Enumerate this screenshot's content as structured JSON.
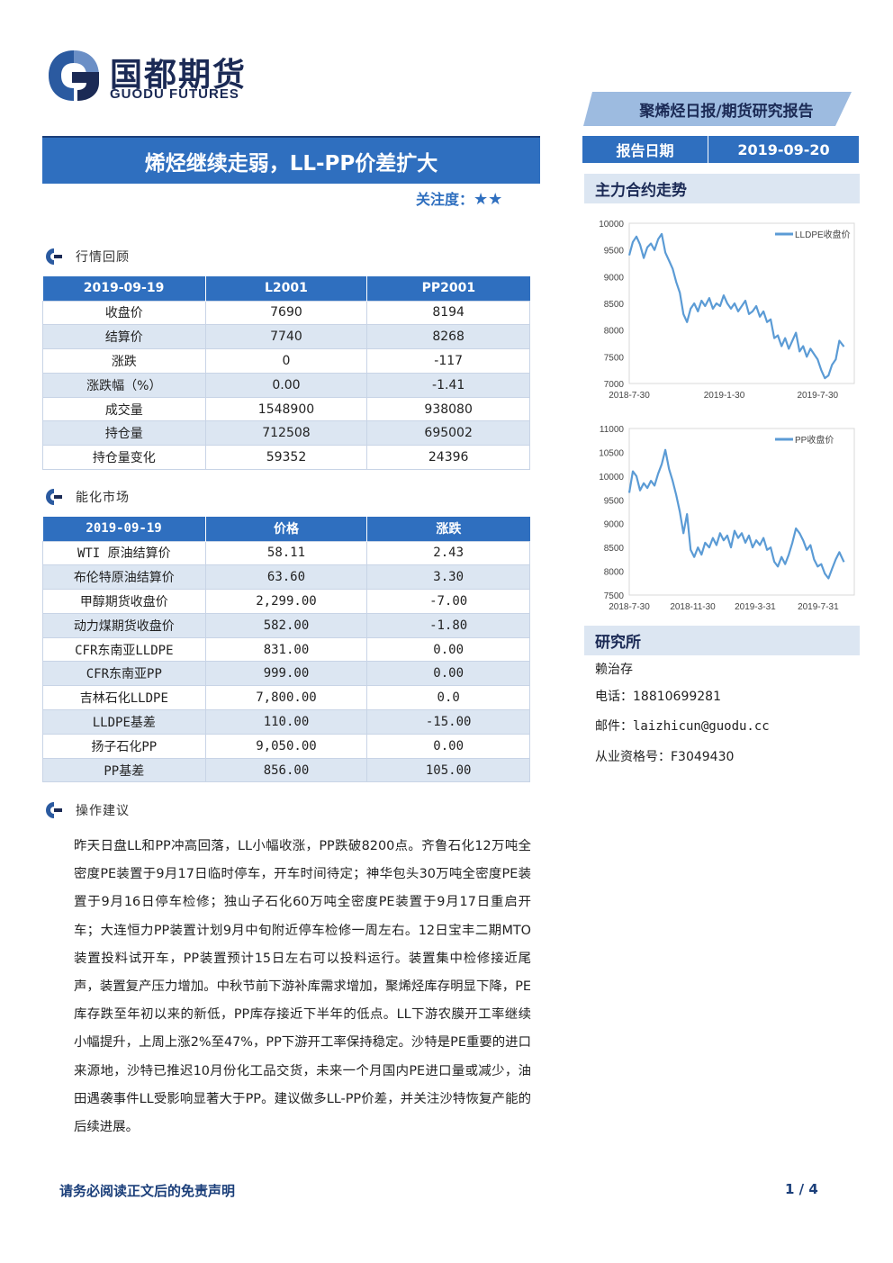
{
  "logo": {
    "cn": "国都期货",
    "en": "GUODU FUTURES"
  },
  "report_type": "聚烯烃日报/期货研究报告",
  "title": "烯烃继续走弱，LL-PP价差扩大",
  "attention": {
    "label": "关注度：",
    "stars": "★★"
  },
  "report_date": {
    "label": "报告日期",
    "value": "2019-09-20"
  },
  "sections": {
    "market_review": "行情回顾",
    "energy_market": "能化市场",
    "suggestion": "操作建议",
    "main_trend": "主力合约走势",
    "institute": "研究所"
  },
  "market_table": {
    "headers": [
      "2019-09-19",
      "L2001",
      "PP2001"
    ],
    "rows": [
      [
        "收盘价",
        "7690",
        "8194"
      ],
      [
        "结算价",
        "7740",
        "8268"
      ],
      [
        "涨跌",
        "0",
        "-117"
      ],
      [
        "涨跌幅（%）",
        "0.00",
        "-1.41"
      ],
      [
        "成交量",
        "1548900",
        "938080"
      ],
      [
        "持仓量",
        "712508",
        "695002"
      ],
      [
        "持仓量变化",
        "59352",
        "24396"
      ]
    ]
  },
  "energy_table": {
    "headers": [
      "2019-09-19",
      "价格",
      "涨跌"
    ],
    "rows": [
      [
        "WTI 原油结算价",
        "58.11",
        "2.43"
      ],
      [
        "布伦特原油结算价",
        "63.60",
        "3.30"
      ],
      [
        "甲醇期货收盘价",
        "2,299.00",
        "-7.00"
      ],
      [
        "动力煤期货收盘价",
        "582.00",
        "-1.80"
      ],
      [
        "CFR东南亚LLDPE",
        "831.00",
        "0.00"
      ],
      [
        "CFR东南亚PP",
        "999.00",
        "0.00"
      ],
      [
        "吉林石化LLDPE",
        "7,800.00",
        "0.0"
      ],
      [
        "LLDPE基差",
        "110.00",
        "-15.00"
      ],
      [
        "扬子石化PP",
        "9,050.00",
        "0.00"
      ],
      [
        "PP基差",
        "856.00",
        "105.00"
      ]
    ]
  },
  "suggestion_text": "昨天日盘LL和PP冲高回落，LL小幅收涨，PP跌破8200点。齐鲁石化12万吨全密度PE装置于9月17日临时停车，开车时间待定；神华包头30万吨全密度PE装置于9月16日停车检修；独山子石化60万吨全密度PE装置于9月17日重启开车；大连恒力PP装置计划9月中旬附近停车检修一周左右。12日宝丰二期MTO装置投料试开车，PP装置预计15日左右可以投料运行。装置集中检修接近尾声，装置复产压力增加。中秋节前下游补库需求增加，聚烯烃库存明显下降，PE库存跌至年初以来的新低，PP库存接近下半年的低点。LL下游农膜开工率继续小幅提升，上周上涨2%至47%，PP下游开工率保持稳定。沙特是PE重要的进口来源地，沙特已推迟10月份化工品交货，未来一个月国内PE进口量或减少，油田遇袭事件LL受影响显著大于PP。建议做多LL-PP价差，并关注沙特恢复产能的后续进展。",
  "analyst": {
    "name": "赖治存",
    "phone": "电话：18810699281",
    "email": "邮件：laizhicun@guodu.cc",
    "license": "从业资格号：F3049430"
  },
  "footer": {
    "disclaimer": "请务必阅读正文后的免责声明",
    "page": "1 / 4"
  },
  "chart_data": [
    {
      "type": "line",
      "series": [
        {
          "name": "LLDPE收盘价",
          "color": "#5b9bd5"
        }
      ],
      "x_ticks": [
        "2018-7-30",
        "2019-1-30",
        "2019-7-30"
      ],
      "y_ticks": [
        7000,
        7500,
        8000,
        8500,
        9000,
        9500,
        10000
      ],
      "ylim": [
        7000,
        10000
      ],
      "legend": "top-right",
      "points": [
        [
          "2018-07-30",
          9400
        ],
        [
          "2018-08-06",
          9650
        ],
        [
          "2018-08-13",
          9750
        ],
        [
          "2018-08-20",
          9600
        ],
        [
          "2018-08-27",
          9350
        ],
        [
          "2018-09-03",
          9550
        ],
        [
          "2018-09-10",
          9620
        ],
        [
          "2018-09-17",
          9500
        ],
        [
          "2018-09-24",
          9700
        ],
        [
          "2018-10-01",
          9800
        ],
        [
          "2018-10-08",
          9450
        ],
        [
          "2018-10-15",
          9300
        ],
        [
          "2018-10-22",
          9150
        ],
        [
          "2018-10-29",
          8900
        ],
        [
          "2018-11-05",
          8700
        ],
        [
          "2018-11-12",
          8300
        ],
        [
          "2018-11-19",
          8150
        ],
        [
          "2018-11-26",
          8400
        ],
        [
          "2018-12-03",
          8500
        ],
        [
          "2018-12-10",
          8350
        ],
        [
          "2018-12-17",
          8550
        ],
        [
          "2018-12-24",
          8450
        ],
        [
          "2019-01-01",
          8600
        ],
        [
          "2019-01-08",
          8400
        ],
        [
          "2019-01-15",
          8500
        ],
        [
          "2019-01-22",
          8450
        ],
        [
          "2019-01-29",
          8650
        ],
        [
          "2019-02-05",
          8500
        ],
        [
          "2019-02-12",
          8400
        ],
        [
          "2019-02-19",
          8500
        ],
        [
          "2019-02-26",
          8350
        ],
        [
          "2019-03-05",
          8450
        ],
        [
          "2019-03-12",
          8550
        ],
        [
          "2019-03-19",
          8300
        ],
        [
          "2019-03-26",
          8350
        ],
        [
          "2019-04-02",
          8450
        ],
        [
          "2019-04-09",
          8250
        ],
        [
          "2019-04-16",
          8350
        ],
        [
          "2019-04-23",
          8150
        ],
        [
          "2019-04-30",
          8200
        ],
        [
          "2019-05-07",
          7850
        ],
        [
          "2019-05-14",
          7900
        ],
        [
          "2019-05-21",
          7700
        ],
        [
          "2019-05-28",
          7850
        ],
        [
          "2019-06-04",
          7650
        ],
        [
          "2019-06-11",
          7800
        ],
        [
          "2019-06-18",
          7950
        ],
        [
          "2019-06-25",
          7600
        ],
        [
          "2019-07-02",
          7700
        ],
        [
          "2019-07-09",
          7500
        ],
        [
          "2019-07-16",
          7650
        ],
        [
          "2019-07-23",
          7550
        ],
        [
          "2019-07-30",
          7450
        ],
        [
          "2019-08-06",
          7250
        ],
        [
          "2019-08-13",
          7100
        ],
        [
          "2019-08-20",
          7150
        ],
        [
          "2019-08-27",
          7350
        ],
        [
          "2019-09-03",
          7450
        ],
        [
          "2019-09-10",
          7800
        ],
        [
          "2019-09-19",
          7690
        ]
      ]
    },
    {
      "type": "line",
      "series": [
        {
          "name": "PP收盘价",
          "color": "#5b9bd5"
        }
      ],
      "x_ticks": [
        "2018-7-30",
        "2018-11-30",
        "2019-3-31",
        "2019-7-31"
      ],
      "y_ticks": [
        7500,
        8000,
        8500,
        9000,
        9500,
        10000,
        10500,
        11000
      ],
      "ylim": [
        7500,
        11000
      ],
      "legend": "top-right",
      "points": [
        [
          "2018-07-30",
          9650
        ],
        [
          "2018-08-06",
          10100
        ],
        [
          "2018-08-13",
          10000
        ],
        [
          "2018-08-20",
          9700
        ],
        [
          "2018-08-27",
          9850
        ],
        [
          "2018-09-03",
          9750
        ],
        [
          "2018-09-10",
          9900
        ],
        [
          "2018-09-17",
          9800
        ],
        [
          "2018-09-24",
          10050
        ],
        [
          "2018-10-01",
          10250
        ],
        [
          "2018-10-08",
          10550
        ],
        [
          "2018-10-15",
          10150
        ],
        [
          "2018-10-22",
          9900
        ],
        [
          "2018-10-29",
          9600
        ],
        [
          "2018-11-05",
          9250
        ],
        [
          "2018-11-12",
          8800
        ],
        [
          "2018-11-19",
          9200
        ],
        [
          "2018-11-26",
          8450
        ],
        [
          "2018-12-03",
          8300
        ],
        [
          "2018-12-10",
          8500
        ],
        [
          "2018-12-17",
          8350
        ],
        [
          "2018-12-24",
          8600
        ],
        [
          "2019-01-01",
          8500
        ],
        [
          "2019-01-08",
          8700
        ],
        [
          "2019-01-15",
          8550
        ],
        [
          "2019-01-22",
          8800
        ],
        [
          "2019-01-29",
          8650
        ],
        [
          "2019-02-05",
          8750
        ],
        [
          "2019-02-12",
          8500
        ],
        [
          "2019-02-19",
          8850
        ],
        [
          "2019-02-26",
          8700
        ],
        [
          "2019-03-05",
          8800
        ],
        [
          "2019-03-12",
          8600
        ],
        [
          "2019-03-19",
          8750
        ],
        [
          "2019-03-26",
          8500
        ],
        [
          "2019-04-02",
          8650
        ],
        [
          "2019-04-09",
          8550
        ],
        [
          "2019-04-16",
          8700
        ],
        [
          "2019-04-23",
          8450
        ],
        [
          "2019-04-30",
          8500
        ],
        [
          "2019-05-07",
          8200
        ],
        [
          "2019-05-14",
          8100
        ],
        [
          "2019-05-21",
          8300
        ],
        [
          "2019-05-28",
          8150
        ],
        [
          "2019-06-04",
          8350
        ],
        [
          "2019-06-11",
          8600
        ],
        [
          "2019-06-18",
          8900
        ],
        [
          "2019-06-25",
          8800
        ],
        [
          "2019-07-02",
          8650
        ],
        [
          "2019-07-09",
          8450
        ],
        [
          "2019-07-16",
          8550
        ],
        [
          "2019-07-23",
          8250
        ],
        [
          "2019-07-30",
          8100
        ],
        [
          "2019-08-06",
          8150
        ],
        [
          "2019-08-13",
          7950
        ],
        [
          "2019-08-20",
          7850
        ],
        [
          "2019-08-27",
          8050
        ],
        [
          "2019-09-03",
          8250
        ],
        [
          "2019-09-10",
          8400
        ],
        [
          "2019-09-19",
          8194
        ]
      ]
    }
  ]
}
